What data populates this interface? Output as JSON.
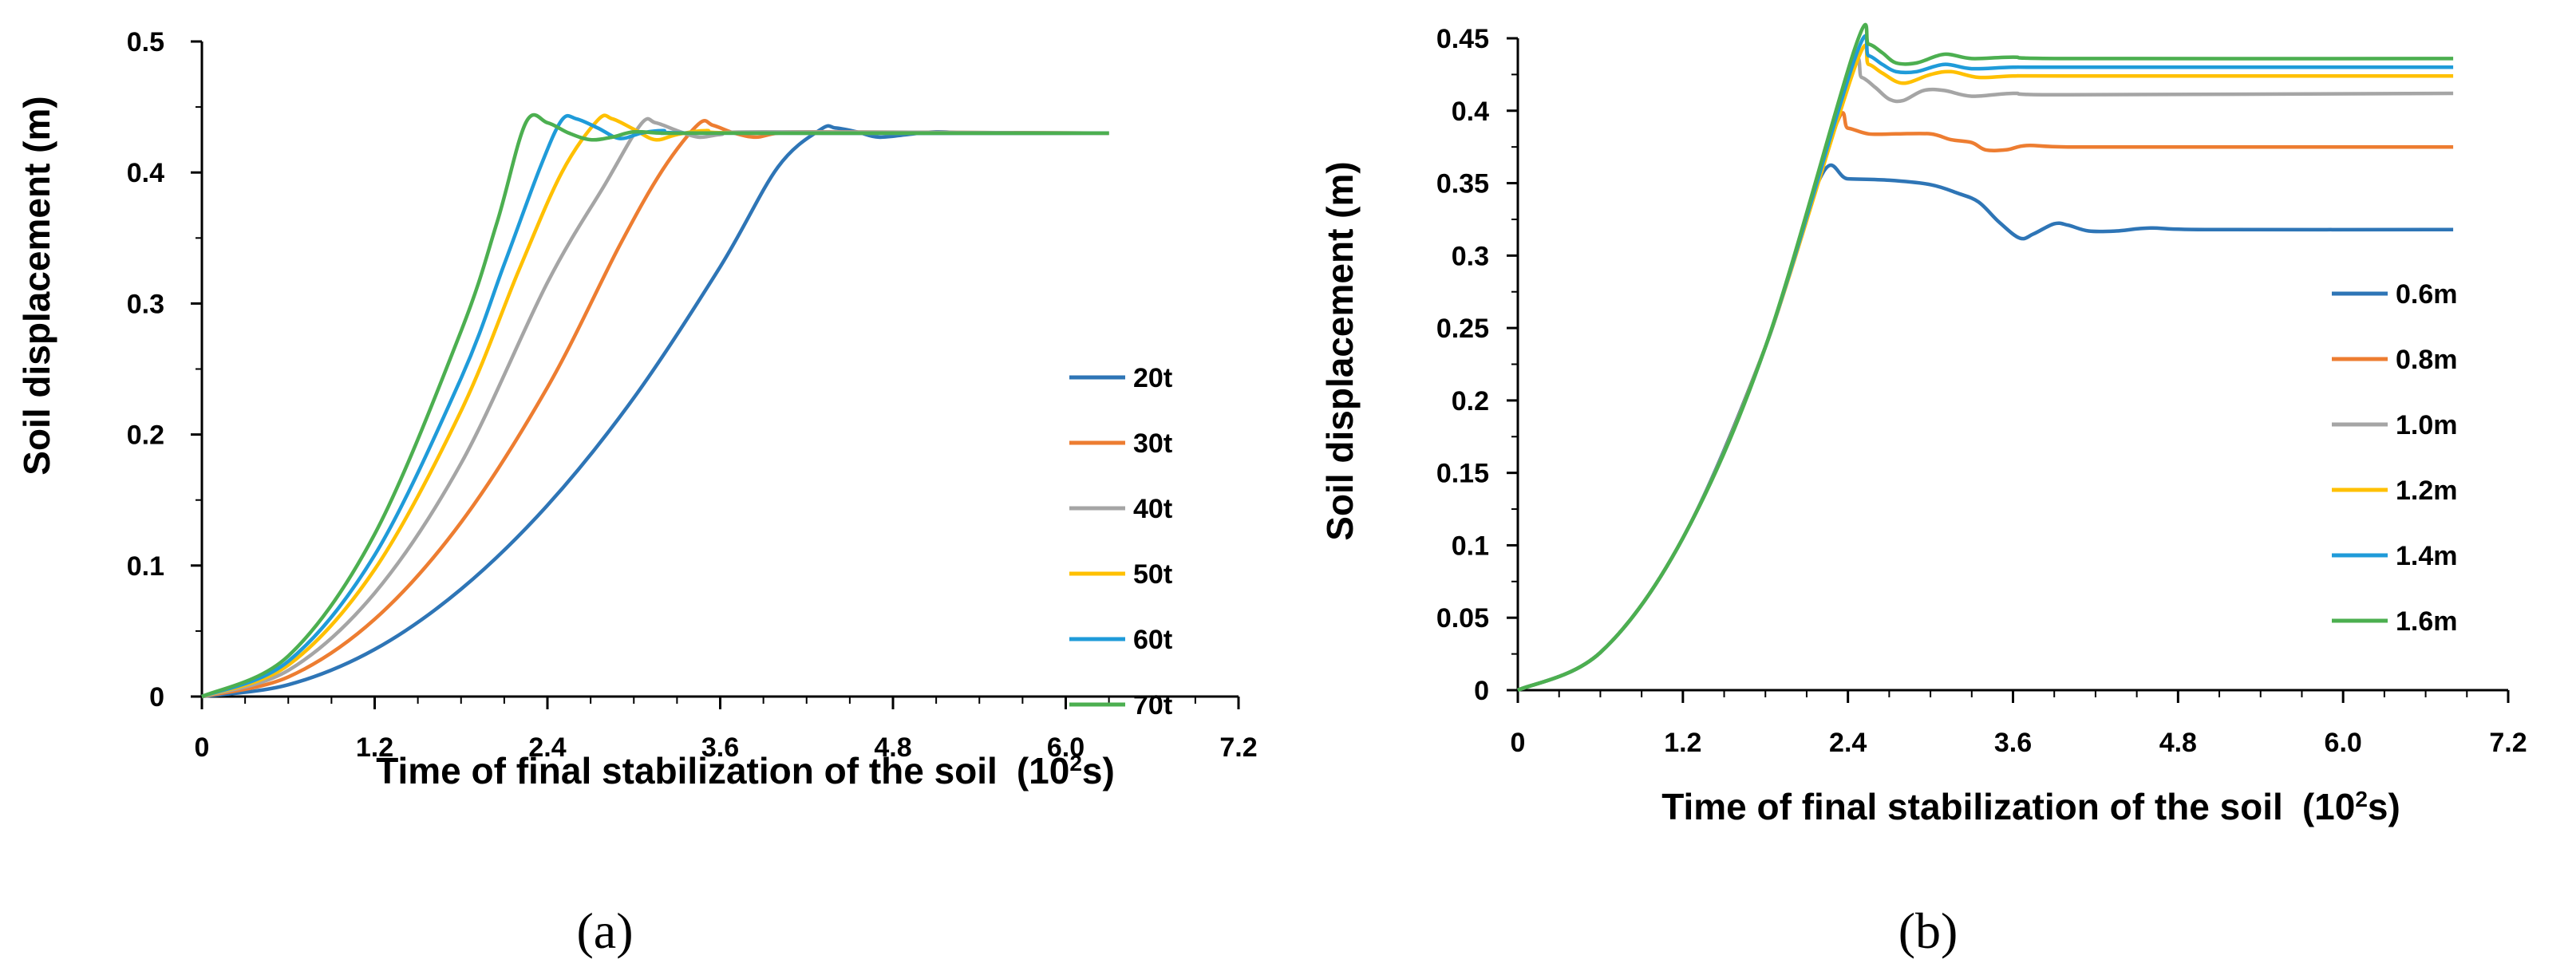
{
  "chart_data": [
    {
      "id": "a",
      "type": "line",
      "panel_label": "(a)",
      "title": "",
      "xlabel": "Time of final stabilization of the soil",
      "xlabel_unit_prefix": "(10",
      "xlabel_unit_sup": "2",
      "xlabel_unit_suffix": "s)",
      "ylabel": "Soil displacement (m)",
      "xlim": [
        0,
        7.2
      ],
      "ylim": [
        0,
        0.5
      ],
      "xticks": [
        "0",
        "1.2",
        "2.4",
        "3.6",
        "4.8",
        "6.0",
        "7.2"
      ],
      "yticks": [
        "0",
        "0.1",
        "0.2",
        "0.3",
        "0.4",
        "0.5"
      ],
      "legend_position": "right",
      "series": [
        {
          "name": "20t",
          "color": "#2e75b6",
          "x": [
            0,
            0.6,
            1.2,
            1.8,
            2.4,
            3.0,
            3.6,
            4.0,
            4.3,
            4.4,
            4.55,
            4.7,
            4.9,
            5.1,
            5.4,
            6.3
          ],
          "y": [
            0,
            0.009,
            0.036,
            0.082,
            0.146,
            0.228,
            0.328,
            0.404,
            0.433,
            0.434,
            0.431,
            0.427,
            0.429,
            0.431,
            0.43,
            0.43
          ]
        },
        {
          "name": "30t",
          "color": "#ed7d31",
          "x": [
            0,
            0.6,
            1.2,
            1.8,
            2.4,
            2.9,
            3.2,
            3.45,
            3.55,
            3.7,
            3.85,
            4.0,
            4.3,
            6.3
          ],
          "y": [
            0,
            0.015,
            0.059,
            0.133,
            0.236,
            0.344,
            0.402,
            0.437,
            0.436,
            0.43,
            0.427,
            0.43,
            0.431,
            0.43
          ]
        },
        {
          "name": "40t",
          "color": "#a5a5a5",
          "x": [
            0,
            0.6,
            1.2,
            1.8,
            2.4,
            2.8,
            3.05,
            3.15,
            3.3,
            3.45,
            3.6,
            3.9,
            6.3
          ],
          "y": [
            0,
            0.02,
            0.079,
            0.178,
            0.316,
            0.391,
            0.437,
            0.438,
            0.432,
            0.427,
            0.429,
            0.431,
            0.43
          ]
        },
        {
          "name": "50t",
          "color": "#ffc000",
          "x": [
            0,
            0.6,
            1.2,
            1.8,
            2.2,
            2.5,
            2.75,
            2.85,
            3.0,
            3.15,
            3.3,
            3.5,
            3.8,
            6.3
          ],
          "y": [
            0,
            0.024,
            0.097,
            0.218,
            0.325,
            0.4,
            0.44,
            0.441,
            0.433,
            0.425,
            0.429,
            0.432,
            0.43,
            0.43
          ]
        },
        {
          "name": "60t",
          "color": "#1f9bd9",
          "x": [
            0,
            0.6,
            1.2,
            1.8,
            2.1,
            2.35,
            2.5,
            2.6,
            2.75,
            2.9,
            3.05,
            3.2,
            3.5,
            6.3
          ],
          "y": [
            0,
            0.027,
            0.108,
            0.243,
            0.33,
            0.404,
            0.44,
            0.441,
            0.434,
            0.426,
            0.43,
            0.432,
            0.43,
            0.43
          ]
        },
        {
          "name": "70t",
          "color": "#4caf50",
          "x": [
            0,
            0.6,
            1.2,
            1.8,
            2.05,
            2.25,
            2.4,
            2.55,
            2.7,
            2.85,
            3.0,
            3.2,
            3.5,
            6.3
          ],
          "y": [
            0,
            0.031,
            0.124,
            0.279,
            0.362,
            0.438,
            0.438,
            0.43,
            0.425,
            0.427,
            0.431,
            0.43,
            0.43,
            0.43
          ]
        }
      ]
    },
    {
      "id": "b",
      "type": "line",
      "panel_label": "(b)",
      "title": "",
      "xlabel": "Time of final stabilization of the soil",
      "xlabel_unit_prefix": "(10",
      "xlabel_unit_sup": "2",
      "xlabel_unit_suffix": "s)",
      "ylabel": "Soil displacement (m)",
      "xlim": [
        0,
        7.2
      ],
      "ylim": [
        0,
        0.45
      ],
      "xticks": [
        "0",
        "1.2",
        "2.4",
        "3.6",
        "4.8",
        "6.0",
        "7.2"
      ],
      "yticks": [
        "0",
        "0.05",
        "0.1",
        "0.15",
        "0.2",
        "0.25",
        "0.3",
        "0.35",
        "0.4",
        "0.45"
      ],
      "legend_position": "right",
      "series": [
        {
          "name": "0.6m",
          "color": "#2e75b6",
          "x": [
            0,
            0.6,
            1.2,
            1.8,
            2.2,
            2.4,
            2.7,
            3.0,
            3.2,
            3.35,
            3.5,
            3.65,
            3.75,
            3.9,
            4.0,
            4.15,
            4.35,
            4.6,
            5.0,
            6.8
          ],
          "y": [
            0,
            0.026,
            0.105,
            0.237,
            0.354,
            0.353,
            0.352,
            0.349,
            0.343,
            0.337,
            0.323,
            0.312,
            0.315,
            0.322,
            0.321,
            0.317,
            0.317,
            0.319,
            0.318,
            0.318
          ]
        },
        {
          "name": "0.8m",
          "color": "#ed7d31",
          "x": [
            0,
            0.6,
            1.2,
            1.8,
            2.3,
            2.4,
            2.55,
            2.75,
            3.0,
            3.15,
            3.3,
            3.4,
            3.55,
            3.7,
            4.0,
            5.0,
            6.8
          ],
          "y": [
            0,
            0.026,
            0.105,
            0.237,
            0.387,
            0.388,
            0.384,
            0.384,
            0.384,
            0.38,
            0.378,
            0.373,
            0.373,
            0.376,
            0.375,
            0.375,
            0.375
          ]
        },
        {
          "name": "1.0m",
          "color": "#a5a5a5",
          "x": [
            0,
            0.6,
            1.2,
            1.8,
            2.4,
            2.5,
            2.6,
            2.7,
            2.8,
            2.95,
            3.1,
            3.3,
            3.6,
            4.0,
            6.8
          ],
          "y": [
            0,
            0.026,
            0.105,
            0.237,
            0.422,
            0.423,
            0.416,
            0.408,
            0.407,
            0.414,
            0.414,
            0.41,
            0.412,
            0.411,
            0.412
          ]
        },
        {
          "name": "1.2m",
          "color": "#ffc000",
          "x": [
            0,
            0.6,
            1.2,
            1.8,
            2.45,
            2.55,
            2.65,
            2.8,
            3.0,
            3.15,
            3.35,
            3.6,
            4.0,
            6.8
          ],
          "y": [
            0,
            0.026,
            0.105,
            0.237,
            0.43,
            0.432,
            0.426,
            0.419,
            0.425,
            0.427,
            0.423,
            0.424,
            0.424,
            0.424
          ]
        },
        {
          "name": "1.4m",
          "color": "#1f9bd9",
          "x": [
            0,
            0.6,
            1.2,
            1.8,
            2.45,
            2.55,
            2.65,
            2.75,
            2.9,
            3.1,
            3.3,
            3.6,
            4.0,
            6.8
          ],
          "y": [
            0,
            0.026,
            0.105,
            0.237,
            0.436,
            0.438,
            0.432,
            0.427,
            0.427,
            0.432,
            0.429,
            0.43,
            0.43,
            0.43
          ]
        },
        {
          "name": "1.6m",
          "color": "#4caf50",
          "x": [
            0,
            0.6,
            1.2,
            1.8,
            2.45,
            2.55,
            2.65,
            2.75,
            2.9,
            3.1,
            3.3,
            3.6,
            4.0,
            6.8
          ],
          "y": [
            0,
            0.026,
            0.105,
            0.237,
            0.443,
            0.446,
            0.44,
            0.433,
            0.433,
            0.439,
            0.436,
            0.437,
            0.436,
            0.436
          ]
        }
      ]
    }
  ]
}
